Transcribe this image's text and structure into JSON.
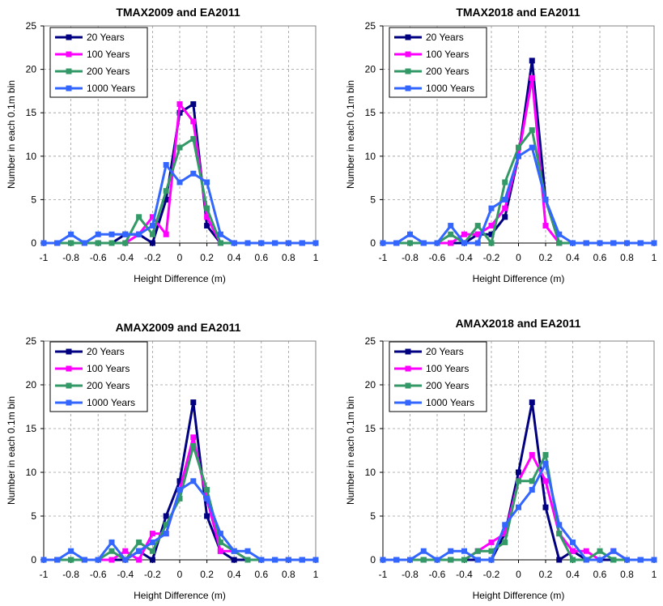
{
  "chart_data": [
    {
      "type": "line",
      "title": "TMAX2009 and EA2011",
      "xlabel": "Height Difference (m)",
      "ylabel": "Number in each 0.1m bin",
      "xlim": [
        -1,
        1
      ],
      "ylim": [
        0,
        25
      ],
      "x_ticks": [
        "-1",
        "-0.8",
        "-0.6",
        "-0.4",
        "-0.2",
        "0",
        "0.2",
        "0.4",
        "0.6",
        "0.8",
        "1"
      ],
      "y_ticks": [
        "0",
        "5",
        "10",
        "15",
        "20",
        "25"
      ],
      "grid": true,
      "legend": "top-left",
      "x": [
        -1,
        -0.9,
        -0.8,
        -0.7,
        -0.6,
        -0.5,
        -0.4,
        -0.3,
        -0.2,
        -0.1,
        0,
        0.1,
        0.2,
        0.3,
        0.4,
        0.5,
        0.6,
        0.7,
        0.8,
        0.9,
        1
      ],
      "series": [
        {
          "name": "20 Years",
          "color": "#000080",
          "values": [
            0,
            0,
            0,
            0,
            0,
            0,
            1,
            1,
            0,
            5,
            15,
            16,
            2,
            0,
            0,
            0,
            0,
            0,
            0,
            0,
            0
          ]
        },
        {
          "name": "100 Years",
          "color": "#FF00FF",
          "values": [
            0,
            0,
            0,
            0,
            0,
            0,
            0,
            1,
            3,
            1,
            16,
            14,
            3,
            0,
            0,
            0,
            0,
            0,
            0,
            0,
            0
          ]
        },
        {
          "name": "200 Years",
          "color": "#339966",
          "values": [
            0,
            0,
            0,
            0,
            0,
            0,
            0,
            3,
            1,
            6,
            11,
            12,
            4,
            0,
            0,
            0,
            0,
            0,
            0,
            0,
            0
          ]
        },
        {
          "name": "1000 Years",
          "color": "#3366FF",
          "values": [
            0,
            0,
            1,
            0,
            1,
            1,
            1,
            1,
            2,
            9,
            7,
            8,
            7,
            1,
            0,
            0,
            0,
            0,
            0,
            0,
            0
          ]
        }
      ]
    },
    {
      "type": "line",
      "title": "TMAX2018 and EA2011",
      "xlabel": "Height Difference (m)",
      "ylabel": "Number in each 0.1m bin",
      "xlim": [
        -1,
        1
      ],
      "ylim": [
        0,
        25
      ],
      "x_ticks": [
        "-1",
        "-0.8",
        "-0.6",
        "-0.4",
        "-0.2",
        "0",
        "0.2",
        "0.4",
        "0.6",
        "0.8",
        "1"
      ],
      "y_ticks": [
        "0",
        "5",
        "10",
        "15",
        "20",
        "25"
      ],
      "grid": true,
      "legend": "top-left",
      "x": [
        -1,
        -0.9,
        -0.8,
        -0.7,
        -0.6,
        -0.5,
        -0.4,
        -0.3,
        -0.2,
        -0.1,
        0,
        0.1,
        0.2,
        0.3,
        0.4,
        0.5,
        0.6,
        0.7,
        0.8,
        0.9,
        1
      ],
      "series": [
        {
          "name": "20 Years",
          "color": "#000080",
          "values": [
            0,
            0,
            0,
            0,
            0,
            0,
            0,
            1,
            1,
            3,
            10,
            21,
            5,
            0,
            0,
            0,
            0,
            0,
            0,
            0,
            0
          ]
        },
        {
          "name": "100 Years",
          "color": "#FF00FF",
          "values": [
            0,
            0,
            0,
            0,
            0,
            0,
            1,
            1,
            2,
            4,
            10,
            19,
            2,
            0,
            0,
            0,
            0,
            0,
            0,
            0,
            0
          ]
        },
        {
          "name": "200 Years",
          "color": "#339966",
          "values": [
            0,
            0,
            0,
            0,
            0,
            1,
            0,
            2,
            0,
            7,
            11,
            13,
            5,
            0,
            0,
            0,
            0,
            0,
            0,
            0,
            0
          ]
        },
        {
          "name": "1000 Years",
          "color": "#3366FF",
          "values": [
            0,
            0,
            1,
            0,
            0,
            2,
            0,
            0,
            4,
            5,
            10,
            11,
            5,
            1,
            0,
            0,
            0,
            0,
            0,
            0,
            0
          ]
        }
      ]
    },
    {
      "type": "line",
      "title": "AMAX2009 and EA2011",
      "xlabel": "Height Difference (m)",
      "ylabel": "Number in each 0.1m bin",
      "xlim": [
        -1,
        1
      ],
      "ylim": [
        0,
        25
      ],
      "x_ticks": [
        "-1",
        "-0.8",
        "-0.6",
        "-0.4",
        "-0.2",
        "0",
        "0.2",
        "0.4",
        "0.6",
        "0.8",
        "1"
      ],
      "y_ticks": [
        "0",
        "5",
        "10",
        "15",
        "20",
        "25"
      ],
      "grid": true,
      "legend": "top-left",
      "x": [
        -1,
        -0.9,
        -0.8,
        -0.7,
        -0.6,
        -0.5,
        -0.4,
        -0.3,
        -0.2,
        -0.1,
        0,
        0.1,
        0.2,
        0.3,
        0.4,
        0.5,
        0.6,
        0.7,
        0.8,
        0.9,
        1
      ],
      "series": [
        {
          "name": "20 Years",
          "color": "#000080",
          "values": [
            0,
            0,
            0,
            0,
            0,
            0,
            0,
            1,
            0,
            5,
            9,
            18,
            5,
            1,
            0,
            0,
            0,
            0,
            0,
            0,
            0
          ]
        },
        {
          "name": "100 Years",
          "color": "#FF00FF",
          "values": [
            0,
            0,
            0,
            0,
            0,
            0,
            1,
            0,
            3,
            3,
            8,
            14,
            7,
            1,
            1,
            0,
            0,
            0,
            0,
            0,
            0
          ]
        },
        {
          "name": "200 Years",
          "color": "#339966",
          "values": [
            0,
            0,
            0,
            0,
            0,
            1,
            0,
            2,
            1,
            4,
            7,
            13,
            8,
            2,
            1,
            0,
            0,
            0,
            0,
            0,
            0
          ]
        },
        {
          "name": "1000 Years",
          "color": "#3366FF",
          "values": [
            0,
            0,
            1,
            0,
            0,
            2,
            0,
            1,
            2,
            3,
            8,
            9,
            7,
            3,
            1,
            1,
            0,
            0,
            0,
            0,
            0
          ]
        }
      ]
    },
    {
      "type": "line",
      "title": "AMAX2018 and EA2011",
      "xlabel": "Height Difference (m)",
      "ylabel": "Number in each 0.1m bin",
      "xlim": [
        -1,
        1
      ],
      "ylim": [
        0,
        25
      ],
      "x_ticks": [
        "-1",
        "-0.8",
        "-0.6",
        "-0.4",
        "-0.2",
        "0",
        "0.2",
        "0.4",
        "0.6",
        "0.8",
        "1"
      ],
      "y_ticks": [
        "0",
        "5",
        "10",
        "15",
        "20",
        "25"
      ],
      "grid": true,
      "legend": "top-left",
      "x": [
        -1,
        -0.9,
        -0.8,
        -0.7,
        -0.6,
        -0.5,
        -0.4,
        -0.3,
        -0.2,
        -0.1,
        0,
        0.1,
        0.2,
        0.3,
        0.4,
        0.5,
        0.6,
        0.7,
        0.8,
        0.9,
        1
      ],
      "series": [
        {
          "name": "20 Years",
          "color": "#000080",
          "values": [
            0,
            0,
            0,
            0,
            0,
            0,
            0,
            0,
            0,
            3,
            10,
            18,
            6,
            0,
            1,
            0,
            0,
            0,
            0,
            0,
            0
          ]
        },
        {
          "name": "100 Years",
          "color": "#FF00FF",
          "values": [
            0,
            0,
            0,
            0,
            0,
            0,
            0,
            1,
            2,
            3,
            9,
            12,
            9,
            3,
            1,
            1,
            0,
            1,
            0,
            0,
            0
          ]
        },
        {
          "name": "200 Years",
          "color": "#339966",
          "values": [
            0,
            0,
            0,
            0,
            0,
            0,
            0,
            1,
            1,
            2,
            9,
            9,
            12,
            3,
            0,
            0,
            1,
            0,
            0,
            0,
            0
          ]
        },
        {
          "name": "1000 Years",
          "color": "#3366FF",
          "values": [
            0,
            0,
            0,
            1,
            0,
            1,
            1,
            0,
            0,
            4,
            6,
            8,
            11,
            4,
            2,
            0,
            0,
            1,
            0,
            0,
            0
          ]
        }
      ]
    }
  ]
}
